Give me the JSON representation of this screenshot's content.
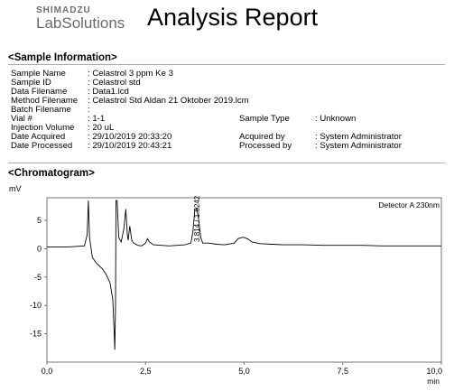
{
  "header": {
    "brand_top": "SHIMADZU",
    "brand_bottom": "LabSolutions",
    "title": "Analysis Report"
  },
  "sample_section": {
    "heading": "<Sample Information>",
    "rows": [
      {
        "label": "Sample Name",
        "value": ": Celastrol 3 ppm Ke 3"
      },
      {
        "label": "Sample ID",
        "value": ": Celastrol std"
      },
      {
        "label": "Data Filename",
        "value": ": Data1.lcd"
      },
      {
        "label": "Method Filename",
        "value": ": Celastrol Std Aldan 21 Oktober 2019.lcm"
      },
      {
        "label": "Batch Filename",
        "value": ":"
      },
      {
        "label": "Vial #",
        "value": ": 1-1",
        "label2": "Sample Type",
        "value2": ": Unknown"
      },
      {
        "label": "Injection Volume",
        "value": ": 20 uL"
      },
      {
        "label": "Date Acquired",
        "value": ": 29/10/2019 20:33:20",
        "label2": "Acquired by",
        "value2": ": System Administrator"
      },
      {
        "label": "Date Processed",
        "value": ": 29/10/2019 20:43:21",
        "label2": "Processed by",
        "value2": ": System Administrator"
      }
    ]
  },
  "chromatogram": {
    "heading": "<Chromatogram>",
    "y_unit": "mV",
    "x_unit": "min",
    "legend": "Detector A 230nm",
    "peak_label": "3.814 / 1.6242"
  },
  "chart_data": {
    "type": "line",
    "title": "",
    "xlabel": "min",
    "ylabel": "mV",
    "xlim": [
      0,
      10
    ],
    "ylim": [
      -20,
      9
    ],
    "x_ticks": [
      0,
      2.5,
      5,
      7.5,
      10
    ],
    "x_tick_labels": [
      "0,0",
      "2,5",
      "5,0",
      "7,5",
      "10,0"
    ],
    "y_ticks": [
      5,
      0,
      -5,
      -10,
      -15
    ],
    "y_tick_labels": [
      "5",
      "0",
      "-5",
      "-10",
      "-15"
    ],
    "grid": false,
    "legend_position": "top-right",
    "series": [
      {
        "name": "Detector A 230nm",
        "color": "#000000",
        "x": [
          0,
          0.5,
          0.95,
          1.02,
          1.05,
          1.08,
          1.15,
          1.25,
          1.4,
          1.5,
          1.6,
          1.67,
          1.7,
          1.72,
          1.74,
          1.75,
          1.78,
          1.82,
          1.88,
          1.95,
          2.0,
          2.04,
          2.06,
          2.1,
          2.15,
          2.2,
          2.3,
          2.4,
          2.5,
          2.55,
          2.6,
          2.7,
          2.9,
          3.1,
          3.3,
          3.5,
          3.65,
          3.7,
          3.75,
          3.8,
          3.85,
          3.9,
          3.95,
          4.1,
          4.3,
          4.5,
          4.75,
          4.85,
          4.95,
          5.0,
          5.1,
          5.2,
          5.4,
          5.7,
          6.0,
          6.5,
          7.0,
          7.5,
          8.0,
          8.5,
          9.0,
          9.5,
          10.0
        ],
        "y": [
          0.3,
          0.3,
          0.5,
          2.5,
          8.5,
          2.0,
          -1.5,
          -2.5,
          -3.5,
          -4.5,
          -6.0,
          -9.0,
          -14.0,
          -17.8,
          -10.0,
          8.5,
          8.5,
          2.0,
          1.2,
          3.5,
          7.0,
          2.5,
          1.5,
          4.0,
          1.5,
          1.0,
          0.6,
          0.5,
          1.0,
          1.8,
          1.2,
          0.7,
          0.6,
          0.5,
          0.6,
          0.7,
          1.0,
          3.0,
          7.0,
          7.2,
          5.0,
          2.0,
          1.0,
          1.0,
          0.8,
          0.7,
          1.0,
          1.8,
          2.0,
          2.0,
          1.7,
          1.2,
          0.9,
          0.8,
          0.7,
          0.7,
          0.6,
          0.6,
          0.6,
          0.5,
          0.5,
          0.5,
          0.5
        ]
      }
    ]
  }
}
